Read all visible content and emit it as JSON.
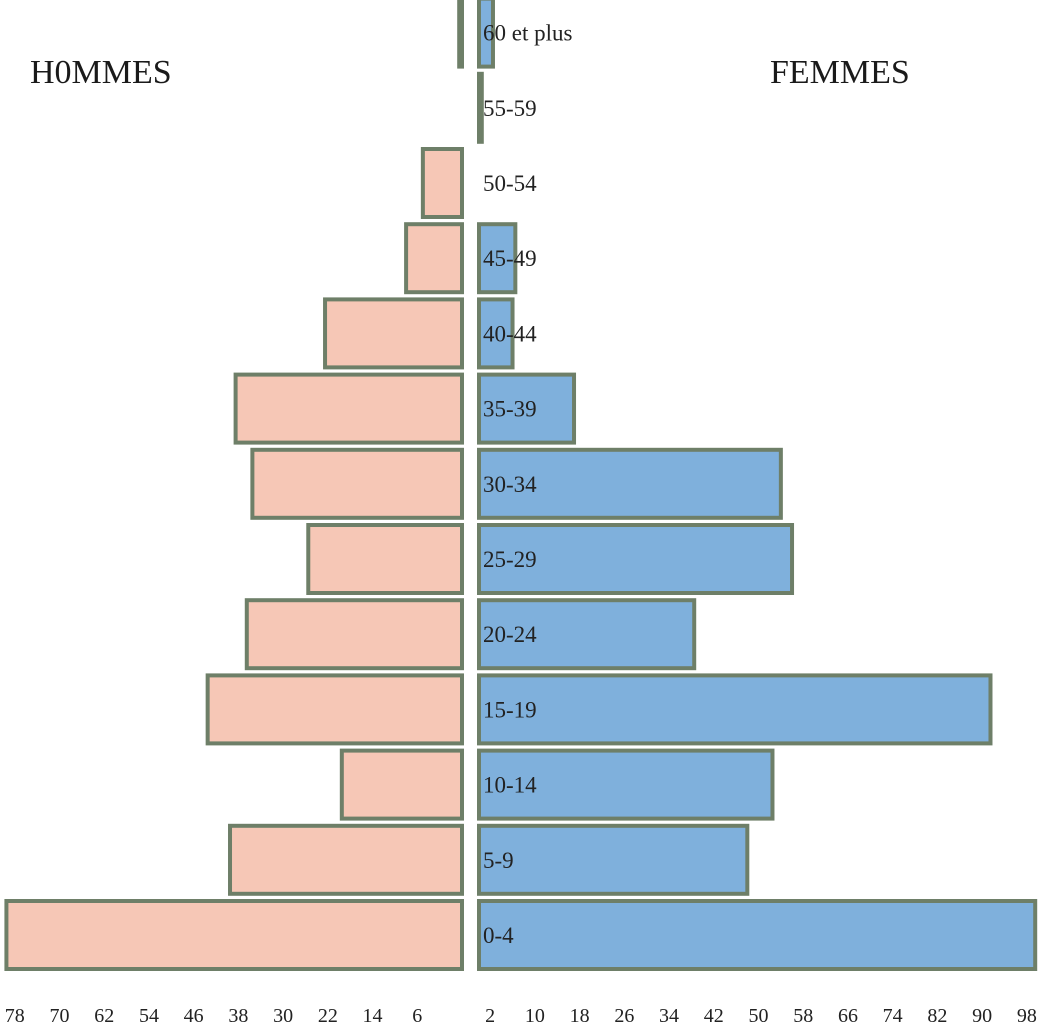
{
  "chart_data": {
    "type": "bar",
    "orientation": "horizontal",
    "layout": "population-pyramid",
    "left_title": "H0MMES",
    "right_title": "FEMMES",
    "categories": [
      "0-4",
      "5-9",
      "10-14",
      "15-19",
      "20-24",
      "25-29",
      "30-34",
      "35-39",
      "40-44",
      "45-49",
      "50-54",
      "55-59",
      "60 et plus"
    ],
    "series": [
      {
        "name": "H0MMES",
        "side": "left",
        "color": "#f6c7b6",
        "values": [
          81.5,
          41.5,
          21.5,
          45.5,
          38.5,
          27.5,
          37.5,
          40.5,
          24.5,
          10,
          7,
          0,
          0.5
        ]
      },
      {
        "name": "FEMMES",
        "side": "right",
        "color": "#7fb0dc",
        "values": [
          99.5,
          48,
          52.5,
          91.5,
          38.5,
          56,
          54,
          17,
          6,
          6.5,
          0,
          0.5,
          2.5
        ]
      }
    ],
    "x_ticks_left": [
      "78",
      "70",
      "62",
      "54",
      "46",
      "38",
      "30",
      "22",
      "14",
      "6"
    ],
    "x_ticks_right": [
      "2",
      "10",
      "18",
      "26",
      "34",
      "42",
      "50",
      "58",
      "66",
      "74",
      "82",
      "90",
      "98"
    ],
    "axis_scale": {
      "left_zero_at": -2,
      "right_zero_at": 0
    },
    "grid": false,
    "legend": "none"
  }
}
